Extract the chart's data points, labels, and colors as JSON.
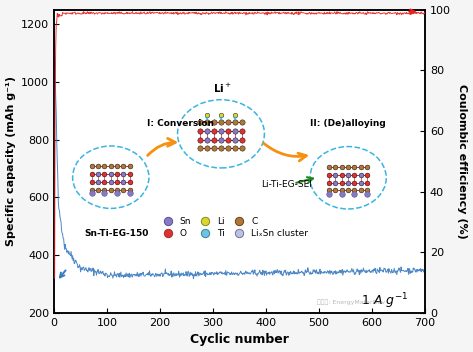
{
  "xlabel": "Cyclic number",
  "ylabel_left": "Specific capacity (mAh g⁻¹)",
  "ylabel_right": "Coulombic efficiency (%)",
  "xlim": [
    0,
    700
  ],
  "ylim_left": [
    200,
    1250
  ],
  "ylim_right": [
    0,
    100
  ],
  "yticks_left": [
    200,
    400,
    600,
    800,
    1000,
    1200
  ],
  "yticks_right": [
    0,
    20,
    40,
    60,
    80,
    100
  ],
  "xticks": [
    0,
    100,
    200,
    300,
    400,
    500,
    600,
    700
  ],
  "bg_color": "#f5f5f5",
  "plot_bg_color": "#ffffff",
  "capacity_color": "#3a7abf",
  "efficiency_color": "#e82020",
  "annotation_label": "1 A g⁻¹",
  "sample_label": "Sn-Ti-EG-150",
  "circle_color": "#3ab4e0",
  "legend_items": [
    {
      "label": "Sn",
      "color": "#8878c8",
      "edge": "#555588"
    },
    {
      "label": "O",
      "color": "#e03030",
      "edge": "#993030"
    },
    {
      "label": "Li",
      "color": "#d8d830",
      "edge": "#888810"
    },
    {
      "label": "Ti",
      "color": "#70c0e8",
      "edge": "#308888"
    },
    {
      "label": "C",
      "color": "#b07838",
      "edge": "#704010"
    },
    {
      "label": "LiₓSn cluster",
      "color": "#c0c0e0",
      "edge": "#7070a0"
    }
  ]
}
